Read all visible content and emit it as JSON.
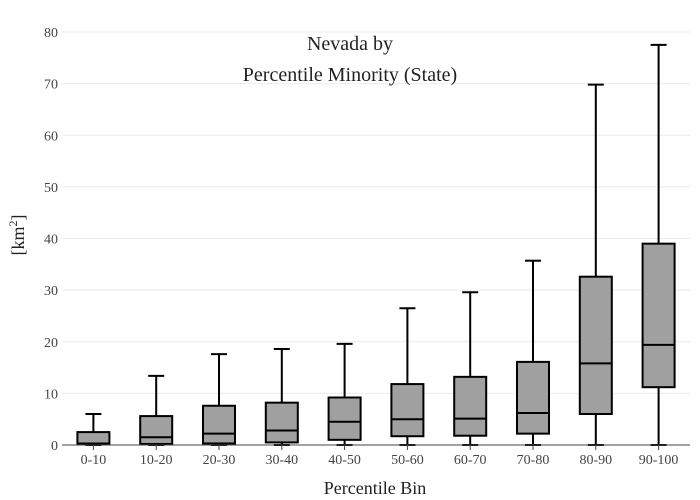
{
  "chart_data": {
    "type": "box",
    "title_line1": "Nevada  by",
    "title_line2": "Percentile Minority (State)",
    "xlabel": "Percentile Bin",
    "ylabel": "[km",
    "ylabel_sup": "2",
    "ylabel_close": "]",
    "ylim": [
      0,
      80
    ],
    "yticks": [
      0,
      10,
      20,
      30,
      40,
      50,
      60,
      70,
      80
    ],
    "grid": true,
    "categories": [
      "0-10",
      "10-20",
      "20-30",
      "30-40",
      "40-50",
      "50-60",
      "60-70",
      "70-80",
      "80-90",
      "90-100"
    ],
    "boxes": [
      {
        "category": "0-10",
        "min": 0,
        "q1": 0.1,
        "median": 0.3,
        "q3": 2.5,
        "max": 6.0
      },
      {
        "category": "10-20",
        "min": 0,
        "q1": 0.2,
        "median": 1.5,
        "q3": 5.6,
        "max": 13.4
      },
      {
        "category": "20-30",
        "min": 0,
        "q1": 0.3,
        "median": 2.2,
        "q3": 7.6,
        "max": 17.6
      },
      {
        "category": "30-40",
        "min": 0,
        "q1": 0.5,
        "median": 2.8,
        "q3": 8.2,
        "max": 18.6
      },
      {
        "category": "40-50",
        "min": 0,
        "q1": 1.0,
        "median": 4.5,
        "q3": 9.2,
        "max": 19.6
      },
      {
        "category": "50-60",
        "min": 0,
        "q1": 1.7,
        "median": 5.0,
        "q3": 11.8,
        "max": 26.5
      },
      {
        "category": "60-70",
        "min": 0,
        "q1": 1.8,
        "median": 5.1,
        "q3": 13.2,
        "max": 29.6
      },
      {
        "category": "70-80",
        "min": 0,
        "q1": 2.2,
        "median": 6.2,
        "q3": 16.1,
        "max": 35.7
      },
      {
        "category": "80-90",
        "min": 0,
        "q1": 6.0,
        "median": 15.8,
        "q3": 32.6,
        "max": 69.8
      },
      {
        "category": "90-100",
        "min": 0,
        "q1": 11.2,
        "median": 19.4,
        "q3": 39.0,
        "max": 77.5
      }
    ],
    "colors": {
      "box_fill": "#a0a0a0",
      "box_stroke": "#000000",
      "grid": "#ebebeb",
      "axis": "#444444"
    }
  }
}
